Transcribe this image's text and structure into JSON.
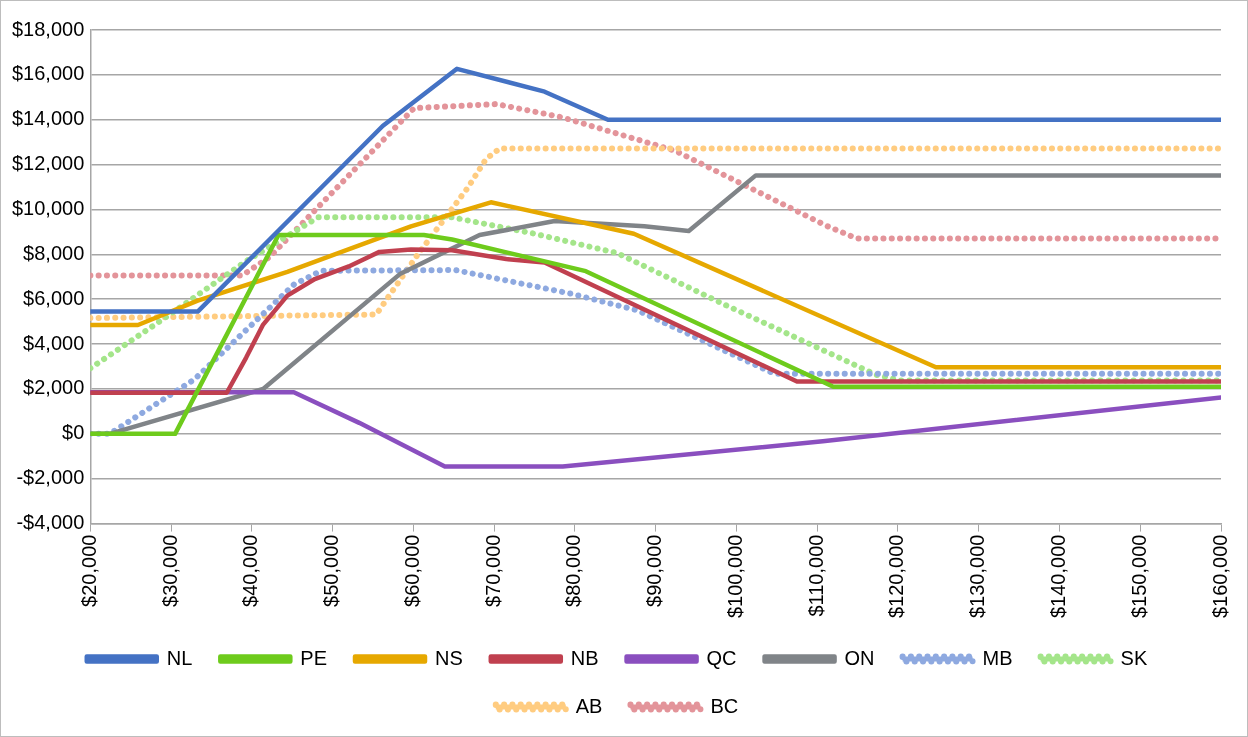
{
  "chart_data": {
    "type": "line",
    "xlim": [
      20000,
      160000
    ],
    "ylim": [
      -4000,
      18000
    ],
    "xticks": [
      {
        "value": 20000,
        "label": "$20,000"
      },
      {
        "value": 30000,
        "label": "$30,000"
      },
      {
        "value": 40000,
        "label": "$40,000"
      },
      {
        "value": 50000,
        "label": "$50,000"
      },
      {
        "value": 60000,
        "label": "$60,000"
      },
      {
        "value": 70000,
        "label": "$70,000"
      },
      {
        "value": 80000,
        "label": "$80,000"
      },
      {
        "value": 90000,
        "label": "$90,000"
      },
      {
        "value": 100000,
        "label": "$100,000"
      },
      {
        "value": 110000,
        "label": "$110,000"
      },
      {
        "value": 120000,
        "label": "$120,000"
      },
      {
        "value": 130000,
        "label": "$130,000"
      },
      {
        "value": 140000,
        "label": "$140,000"
      },
      {
        "value": 150000,
        "label": "$150,000"
      },
      {
        "value": 160000,
        "label": "$160,000"
      }
    ],
    "yticks": [
      {
        "value": -4000,
        "label": "-$4,000"
      },
      {
        "value": -2000,
        "label": "-$2,000"
      },
      {
        "value": 0,
        "label": "$0"
      },
      {
        "value": 2000,
        "label": "$2,000"
      },
      {
        "value": 4000,
        "label": "$4,000"
      },
      {
        "value": 6000,
        "label": "$6,000"
      },
      {
        "value": 8000,
        "label": "$8,000"
      },
      {
        "value": 10000,
        "label": "$10,000"
      },
      {
        "value": 12000,
        "label": "$12,000"
      },
      {
        "value": 14000,
        "label": "$14,000"
      },
      {
        "value": 16000,
        "label": "$16,000"
      },
      {
        "value": 18000,
        "label": "$18,000"
      }
    ],
    "grid": "y",
    "legend": "bottom",
    "marker": "none",
    "series": [
      {
        "name": "NL",
        "color": "#4472c4",
        "line_style": "solid",
        "x": [
          20000,
          33300,
          56200,
          65400,
          76250,
          84100,
          160000
        ],
        "values": [
          5450,
          5450,
          13720,
          16270,
          15250,
          14000,
          14000
        ]
      },
      {
        "name": "PE",
        "color": "#6ecb1c",
        "line_style": "solid",
        "x": [
          20000,
          30500,
          43300,
          61300,
          64800,
          81350,
          112000,
          160000
        ],
        "values": [
          0,
          0,
          8860,
          8860,
          8660,
          7250,
          2100,
          2100
        ]
      },
      {
        "name": "NS",
        "color": "#e6a800",
        "line_style": "solid",
        "x": [
          20000,
          25900,
          33300,
          44400,
          59700,
          69600,
          87300,
          124700,
          160000
        ],
        "values": [
          4850,
          4850,
          5940,
          7220,
          9250,
          10320,
          8920,
          2970,
          2970
        ]
      },
      {
        "name": "NB",
        "color": "#c0404f",
        "line_style": "solid",
        "x": [
          20000,
          36900,
          39300,
          41400,
          44400,
          47800,
          52000,
          55800,
          59700,
          64800,
          71500,
          76250,
          107500,
          160000
        ],
        "values": [
          1830,
          1830,
          3400,
          4870,
          6160,
          6900,
          7460,
          8110,
          8220,
          8180,
          7790,
          7640,
          2330,
          2330
        ]
      },
      {
        "name": "QC",
        "color": "#8a4fbf",
        "line_style": "solid",
        "x": [
          20000,
          45200,
          53300,
          63900,
          78500,
          110700,
          160000
        ],
        "values": [
          1850,
          1850,
          490,
          -1460,
          -1460,
          -330,
          1620
        ]
      },
      {
        "name": "ON",
        "color": "#808488",
        "line_style": "solid",
        "x": [
          20000,
          22400,
          41400,
          58400,
          68200,
          77500,
          88600,
          94100,
          102400,
          160000
        ],
        "values": [
          0,
          0,
          2000,
          7140,
          8860,
          9490,
          9250,
          9040,
          11520,
          11520
        ]
      },
      {
        "name": "MB",
        "color": "#8ea9e0",
        "line_style": "dotted",
        "x": [
          20000,
          22400,
          32900,
          45200,
          48600,
          65200,
          79600,
          87700,
          104700,
          160000
        ],
        "values": [
          0,
          0,
          2430,
          6650,
          7270,
          7300,
          6240,
          5510,
          2680,
          2680
        ]
      },
      {
        "name": "SK",
        "color": "#a4e58a",
        "line_style": "dotted",
        "x": [
          20000,
          29000,
          39300,
          48200,
          64800,
          75000,
          85200,
          98300,
          111500,
          117300,
          120300,
          160000
        ],
        "values": [
          2920,
          5110,
          7700,
          9650,
          9650,
          8920,
          8060,
          5800,
          3600,
          2630,
          2380,
          2380
        ]
      },
      {
        "name": "AB",
        "color": "#ffcc80",
        "line_style": "dotted",
        "x": [
          20000,
          55400,
          60300,
          66700,
          69000,
          70700,
          160000
        ],
        "values": [
          5160,
          5320,
          7870,
          10950,
          12250,
          12720,
          12720
        ]
      },
      {
        "name": "BC",
        "color": "#e3949a",
        "line_style": "dotted",
        "x": [
          20000,
          38800,
          42200,
          54100,
          60100,
          70300,
          78400,
          92400,
          111100,
          114900,
          160000
        ],
        "values": [
          7060,
          7060,
          7880,
          12290,
          14520,
          14700,
          14110,
          12620,
          9280,
          8710,
          8710
        ]
      }
    ]
  }
}
